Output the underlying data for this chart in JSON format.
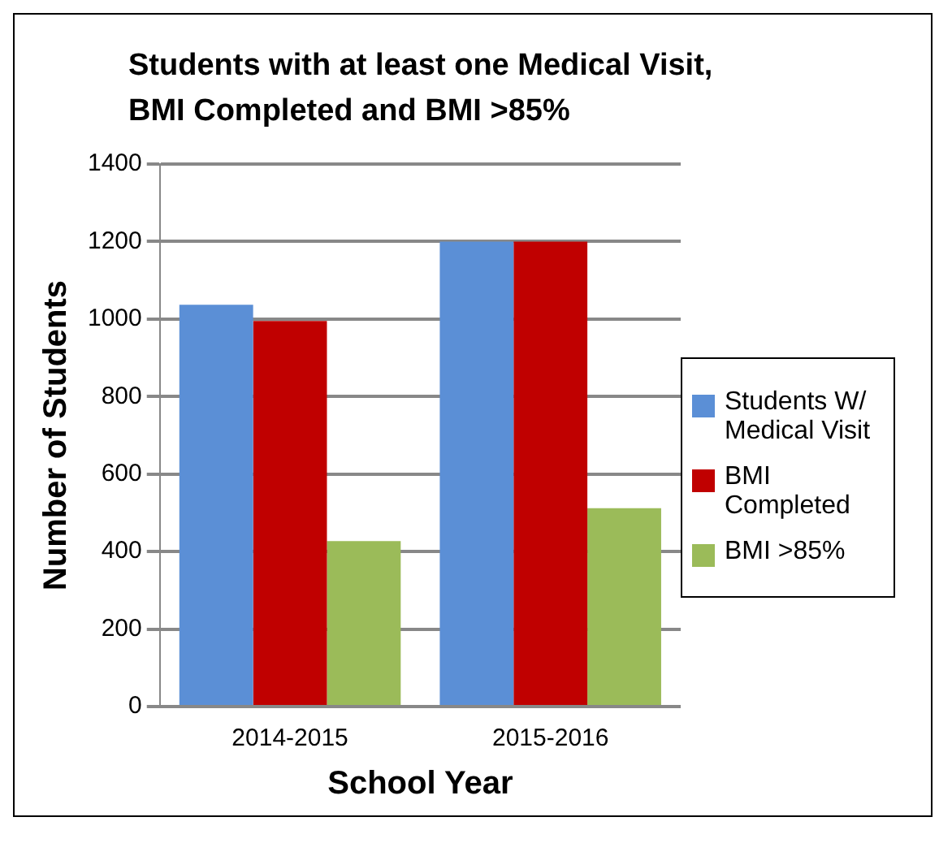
{
  "chart_data": {
    "type": "bar",
    "title": "Students with at least one Medical Visit, BMI Completed and BMI >85%",
    "xlabel": "School Year",
    "ylabel": "Number of Students",
    "categories": [
      "2014-2015",
      "2015-2016"
    ],
    "series": [
      {
        "name": "Students W/ Medical Visit",
        "color": "#5b8fd6",
        "values": [
          1037,
          1200
        ]
      },
      {
        "name": "BMI Completed",
        "color": "#c00000",
        "values": [
          995,
          1200
        ]
      },
      {
        "name": "BMI >85%",
        "color": "#9bbb59",
        "values": [
          427,
          512
        ]
      }
    ],
    "ylim": [
      0,
      1400
    ],
    "yticks": [
      0,
      200,
      400,
      600,
      800,
      1000,
      1200,
      1400
    ],
    "grid": "y",
    "legend": "right"
  }
}
